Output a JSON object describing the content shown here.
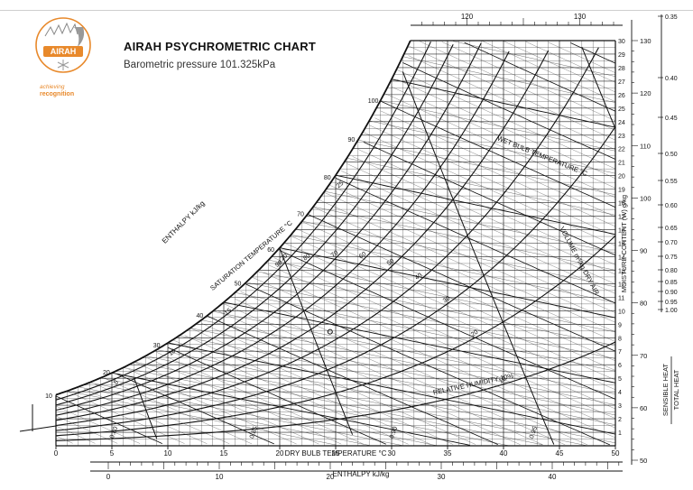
{
  "header": {
    "title": "AIRAH PSYCHROMETRIC CHART",
    "subtitle": "Barometric pressure 101.325kPa",
    "logo_text": "AIRAH",
    "tagline_1": "achieving",
    "tagline_2": "recognition"
  },
  "colors": {
    "ink": "#111111",
    "logo_orange": "#e8892b",
    "background": "#ffffff"
  },
  "chart_data": {
    "type": "psychrometric",
    "title": "AIRAH PSYCHROMETRIC CHART",
    "subtitle": "Barometric pressure 101.325kPa",
    "pressure_kpa": 101.325,
    "xlabel": "DRY BULB TEMPERATURE °C",
    "ylabel": "MOISTURE CONTENT (W) g/kg",
    "xlim": [
      0,
      50
    ],
    "ylim": [
      0,
      30
    ],
    "x_ticks": [
      0,
      5,
      10,
      15,
      20,
      25,
      30,
      35,
      40,
      45,
      50
    ],
    "y_ticks": [
      1,
      2,
      3,
      4,
      5,
      6,
      7,
      8,
      9,
      10,
      11,
      12,
      13,
      14,
      15,
      16,
      17,
      18,
      19,
      20,
      21,
      22,
      23,
      24,
      25,
      26,
      27,
      28,
      29,
      30
    ],
    "enthalpy_lines": {
      "label": "ENTHALPY kJ/kg",
      "values": [
        0,
        10,
        20,
        30,
        40,
        50,
        60,
        70,
        80,
        90,
        100,
        110
      ],
      "diag_labels": [
        10,
        20,
        30,
        40,
        50,
        60,
        70,
        80,
        90,
        100
      ],
      "bottom_scale": {
        "label": "ENTHALPY kJ/kg",
        "ticks": [
          0,
          10,
          20,
          30,
          40
        ]
      },
      "top_scale": {
        "ticks": [
          120,
          130
        ]
      }
    },
    "wet_bulb_lines": {
      "label": "WET BULB TEMPERATURE °C",
      "values": [
        5,
        10,
        15,
        20,
        25,
        30
      ],
      "diag_labels": [
        5,
        10,
        15,
        20,
        25
      ]
    },
    "relative_humidity": {
      "label": "RELATIVE HUMIDITY",
      "values": [
        10,
        20,
        30,
        40,
        50,
        60,
        70,
        80,
        90
      ],
      "curve_labels": [
        "10",
        "20",
        "30",
        "40",
        "50",
        "60",
        "70",
        "80",
        "90"
      ],
      "label_rh10": "RELATIVE HUMIDITY 10%"
    },
    "specific_volume": {
      "label": "VOLUME m³/kg DRY AIR",
      "values": [
        0.8,
        0.85,
        0.9,
        0.95
      ],
      "labels": [
        "0.80",
        "0.85",
        "0.90",
        "0.95"
      ]
    },
    "saturation_label": "SATURATION TEMPERATURE °C",
    "shr_scale": {
      "label_top": "SENSIBLE HEAT",
      "label_bottom": "TOTAL HEAT",
      "ticks": [
        "0.35",
        "0.40",
        "0.45",
        "0.50",
        "0.55",
        "0.60",
        "0.65",
        "0.70",
        "0.75",
        "0.80",
        "0.85",
        "0.90",
        "0.95",
        "1.00"
      ]
    },
    "right_enthalpy_scale": {
      "ticks": [
        50,
        60,
        70,
        80,
        90,
        100,
        110,
        120,
        130
      ]
    },
    "protractor_ticks": [
      0.35,
      0.4,
      0.45,
      0.5,
      0.55,
      0.6,
      0.65,
      0.7,
      0.75,
      0.8,
      0.85,
      0.9,
      0.95,
      1.0
    ],
    "grid": true
  }
}
